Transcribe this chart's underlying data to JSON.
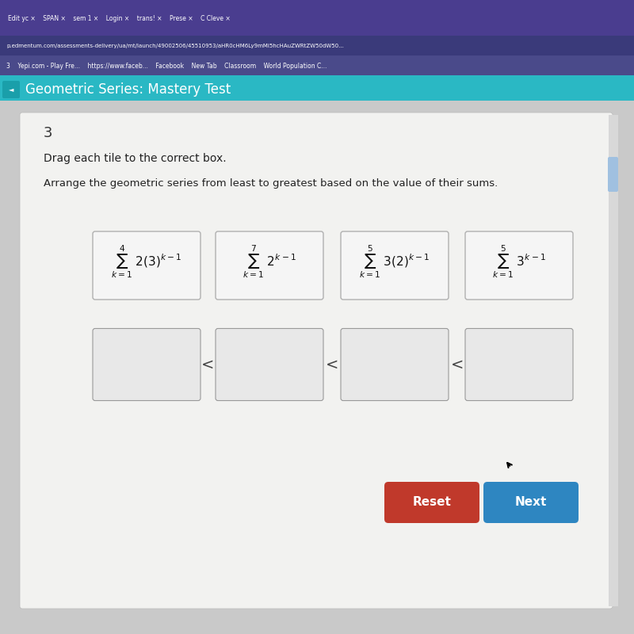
{
  "bg_color": "#c8c8c8",
  "browser_tab_bg": "#4a3d8f",
  "browser_tab_text": "Edit yc ×    SPAN ×    sem 1 ×    Login ×    trans! ×    Prese ×    C Cleve ×",
  "url_bar_bg": "#3a3a7a",
  "url_text": "p.edmentum.com/assessments-delivery/ua/mt/launch/49002506/45510953/aHR0cHM6Ly9mMi5hcHAuZWRtZW50dW50...",
  "bookmarks_bar_bg": "#4a4a8a",
  "bookmarks_text": "3    Yepi.com - Play Fre...    https://www.faceb...    Facebook    New Tab    Classroom    World Population C...",
  "header_bg": "#2ab8c4",
  "header_text": "Geometric Series: Mastery Test",
  "header_text_color": "#ffffff",
  "content_bg": "#dcdcdc",
  "white_panel_bg": "#f2f2f0",
  "question_number": "3",
  "instruction1": "Drag each tile to the correct box.",
  "instruction2": "Arrange the geometric series from least to greatest based on the value of their sums.",
  "tile_bg": "#f5f5f5",
  "tile_border": "#b0b0b0",
  "answer_bg": "#e8e8e8",
  "answer_border": "#999999",
  "less_than": "<",
  "btn_reset_color": "#c0392b",
  "btn_next_color": "#2e86c1",
  "btn_reset_text": "Reset",
  "btn_next_text": "Next",
  "scroll_bar_color": "#a0c0e0",
  "right_panel_bg": "#d0d0d0"
}
